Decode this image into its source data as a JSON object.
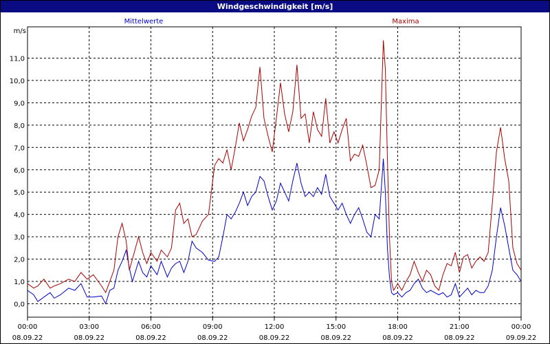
{
  "window": {
    "title": "Windgeschwindigkeit [m/s]"
  },
  "chart_data": {
    "type": "line",
    "title": "Windgeschwindigkeit [m/s]",
    "ylabel": "m/s",
    "ylim": [
      -0.6,
      12.4
    ],
    "xlim": [
      0,
      24
    ],
    "grid": true,
    "legend_placement": "top",
    "y_ticks": [
      0.0,
      1.0,
      2.0,
      3.0,
      4.0,
      5.0,
      6.0,
      7.0,
      8.0,
      9.0,
      10.0,
      11.0
    ],
    "y_tick_labels": [
      "0,0",
      "1,0",
      "2,0",
      "3,0",
      "4,0",
      "5,0",
      "6,0",
      "7,0",
      "8,0",
      "9,0",
      "10,0",
      "11,0"
    ],
    "x_ticks": [
      0,
      3,
      6,
      9,
      12,
      15,
      18,
      21,
      24
    ],
    "x_tick_labels": [
      {
        "time": "00:00",
        "date": "08.09.22"
      },
      {
        "time": "03:00",
        "date": "08.09.22"
      },
      {
        "time": "06:00",
        "date": "08.09.22"
      },
      {
        "time": "09:00",
        "date": "08.09.22"
      },
      {
        "time": "12:00",
        "date": "08.09.22"
      },
      {
        "time": "15:00",
        "date": "08.09.22"
      },
      {
        "time": "18:00",
        "date": "08.09.22"
      },
      {
        "time": "21:00",
        "date": "08.09.22"
      },
      {
        "time": "00:00",
        "date": "09.09.22"
      }
    ],
    "series": [
      {
        "name": "Mittelwerte",
        "color": "#0000cc",
        "x": [
          0,
          0.3,
          0.5,
          0.8,
          1.1,
          1.3,
          1.6,
          2.0,
          2.3,
          2.6,
          2.9,
          3.2,
          3.6,
          3.8,
          4.0,
          4.2,
          4.4,
          4.6,
          4.8,
          4.95,
          5.1,
          5.4,
          5.6,
          5.8,
          6.0,
          6.3,
          6.5,
          6.8,
          7.0,
          7.2,
          7.4,
          7.6,
          7.8,
          8.0,
          8.2,
          8.5,
          8.8,
          9.1,
          9.3,
          9.5,
          9.7,
          9.9,
          10.1,
          10.3,
          10.5,
          10.7,
          10.9,
          11.1,
          11.3,
          11.5,
          11.7,
          11.9,
          12.1,
          12.3,
          12.5,
          12.7,
          12.9,
          13.1,
          13.3,
          13.5,
          13.7,
          13.9,
          14.1,
          14.3,
          14.5,
          14.7,
          14.9,
          15.1,
          15.3,
          15.5,
          15.7,
          15.9,
          16.1,
          16.3,
          16.5,
          16.7,
          16.9,
          17.1,
          17.3,
          17.4,
          17.5,
          17.6,
          17.7,
          17.8,
          18.0,
          18.2,
          18.4,
          18.6,
          18.8,
          19.0,
          19.2,
          19.4,
          19.6,
          19.8,
          20.0,
          20.2,
          20.4,
          20.6,
          20.8,
          21.0,
          21.2,
          21.4,
          21.6,
          21.8,
          22.0,
          22.2,
          22.4,
          22.6,
          22.8,
          23.0,
          23.2,
          23.4,
          23.6,
          23.8,
          24.0
        ],
        "y": [
          0.6,
          0.4,
          0.1,
          0.3,
          0.5,
          0.25,
          0.4,
          0.7,
          0.6,
          0.9,
          0.3,
          0.3,
          0.35,
          0.0,
          0.6,
          0.7,
          1.5,
          1.9,
          2.4,
          1.6,
          1.0,
          1.9,
          1.4,
          1.2,
          1.7,
          1.3,
          1.9,
          1.2,
          1.6,
          1.8,
          1.9,
          1.4,
          1.9,
          2.8,
          2.5,
          2.3,
          1.95,
          1.9,
          2.1,
          3.0,
          4.0,
          3.8,
          4.1,
          4.5,
          5.0,
          4.4,
          4.8,
          5.0,
          5.7,
          5.5,
          4.8,
          4.2,
          4.6,
          5.4,
          5.0,
          4.6,
          5.5,
          6.3,
          5.4,
          4.8,
          5.0,
          4.8,
          5.2,
          4.9,
          5.8,
          4.8,
          4.5,
          4.2,
          4.5,
          4.0,
          3.6,
          4.0,
          4.3,
          3.8,
          3.2,
          3.0,
          4.0,
          3.8,
          6.5,
          5.0,
          2.5,
          1.2,
          0.5,
          0.4,
          0.5,
          0.3,
          0.5,
          0.6,
          0.9,
          1.1,
          0.7,
          0.5,
          0.6,
          0.5,
          0.4,
          0.5,
          0.3,
          0.4,
          0.9,
          0.3,
          0.5,
          0.7,
          0.4,
          0.6,
          0.5,
          0.5,
          0.8,
          1.5,
          3.0,
          4.3,
          3.5,
          2.5,
          1.5,
          1.3,
          1.0
        ]
      },
      {
        "name": "Maxima",
        "color": "#aa0000",
        "x": [
          0,
          0.3,
          0.5,
          0.8,
          1.1,
          1.3,
          1.6,
          2.0,
          2.3,
          2.6,
          2.9,
          3.2,
          3.6,
          3.8,
          4.0,
          4.2,
          4.4,
          4.6,
          4.8,
          4.95,
          5.1,
          5.4,
          5.6,
          5.8,
          6.0,
          6.3,
          6.5,
          6.8,
          7.0,
          7.2,
          7.4,
          7.6,
          7.8,
          8.0,
          8.2,
          8.5,
          8.8,
          9.1,
          9.3,
          9.5,
          9.7,
          9.9,
          10.1,
          10.3,
          10.5,
          10.7,
          10.9,
          11.1,
          11.3,
          11.5,
          11.7,
          11.9,
          12.1,
          12.3,
          12.5,
          12.7,
          12.9,
          13.1,
          13.3,
          13.5,
          13.7,
          13.9,
          14.1,
          14.3,
          14.5,
          14.7,
          14.9,
          15.1,
          15.3,
          15.5,
          15.7,
          15.9,
          16.1,
          16.3,
          16.5,
          16.7,
          16.9,
          17.1,
          17.3,
          17.4,
          17.5,
          17.6,
          17.7,
          17.8,
          18.0,
          18.2,
          18.4,
          18.6,
          18.8,
          19.0,
          19.2,
          19.4,
          19.6,
          19.8,
          20.0,
          20.2,
          20.4,
          20.6,
          20.8,
          21.0,
          21.2,
          21.4,
          21.6,
          21.8,
          22.0,
          22.2,
          22.4,
          22.6,
          22.8,
          23.0,
          23.2,
          23.4,
          23.6,
          23.8,
          24.0
        ],
        "y": [
          0.9,
          0.7,
          0.8,
          1.1,
          0.7,
          0.8,
          0.9,
          1.1,
          1.0,
          1.4,
          1.1,
          1.3,
          0.8,
          0.5,
          1.0,
          1.5,
          3.0,
          3.6,
          2.8,
          1.5,
          2.0,
          3.0,
          2.3,
          1.8,
          2.3,
          1.9,
          2.4,
          2.1,
          2.5,
          4.2,
          4.5,
          3.6,
          3.8,
          3.0,
          3.1,
          3.7,
          4.0,
          6.2,
          6.5,
          6.3,
          6.9,
          6.0,
          7.0,
          8.1,
          7.3,
          7.8,
          8.4,
          8.8,
          10.6,
          8.3,
          7.5,
          6.8,
          8.3,
          9.9,
          8.5,
          7.7,
          8.6,
          10.7,
          8.3,
          8.5,
          7.2,
          8.6,
          7.8,
          7.5,
          9.2,
          7.2,
          7.7,
          7.2,
          7.8,
          8.3,
          6.4,
          6.7,
          6.6,
          7.1,
          6.2,
          5.2,
          5.3,
          6.0,
          11.8,
          10.5,
          6.5,
          3.0,
          1.0,
          0.6,
          0.9,
          0.6,
          1.0,
          1.3,
          1.9,
          1.4,
          1.0,
          1.5,
          1.3,
          0.8,
          0.6,
          1.3,
          1.8,
          1.7,
          2.3,
          1.4,
          2.1,
          2.2,
          1.6,
          1.9,
          2.1,
          1.9,
          2.3,
          4.5,
          6.8,
          7.9,
          6.5,
          5.5,
          2.5,
          1.8,
          1.5
        ]
      }
    ]
  }
}
